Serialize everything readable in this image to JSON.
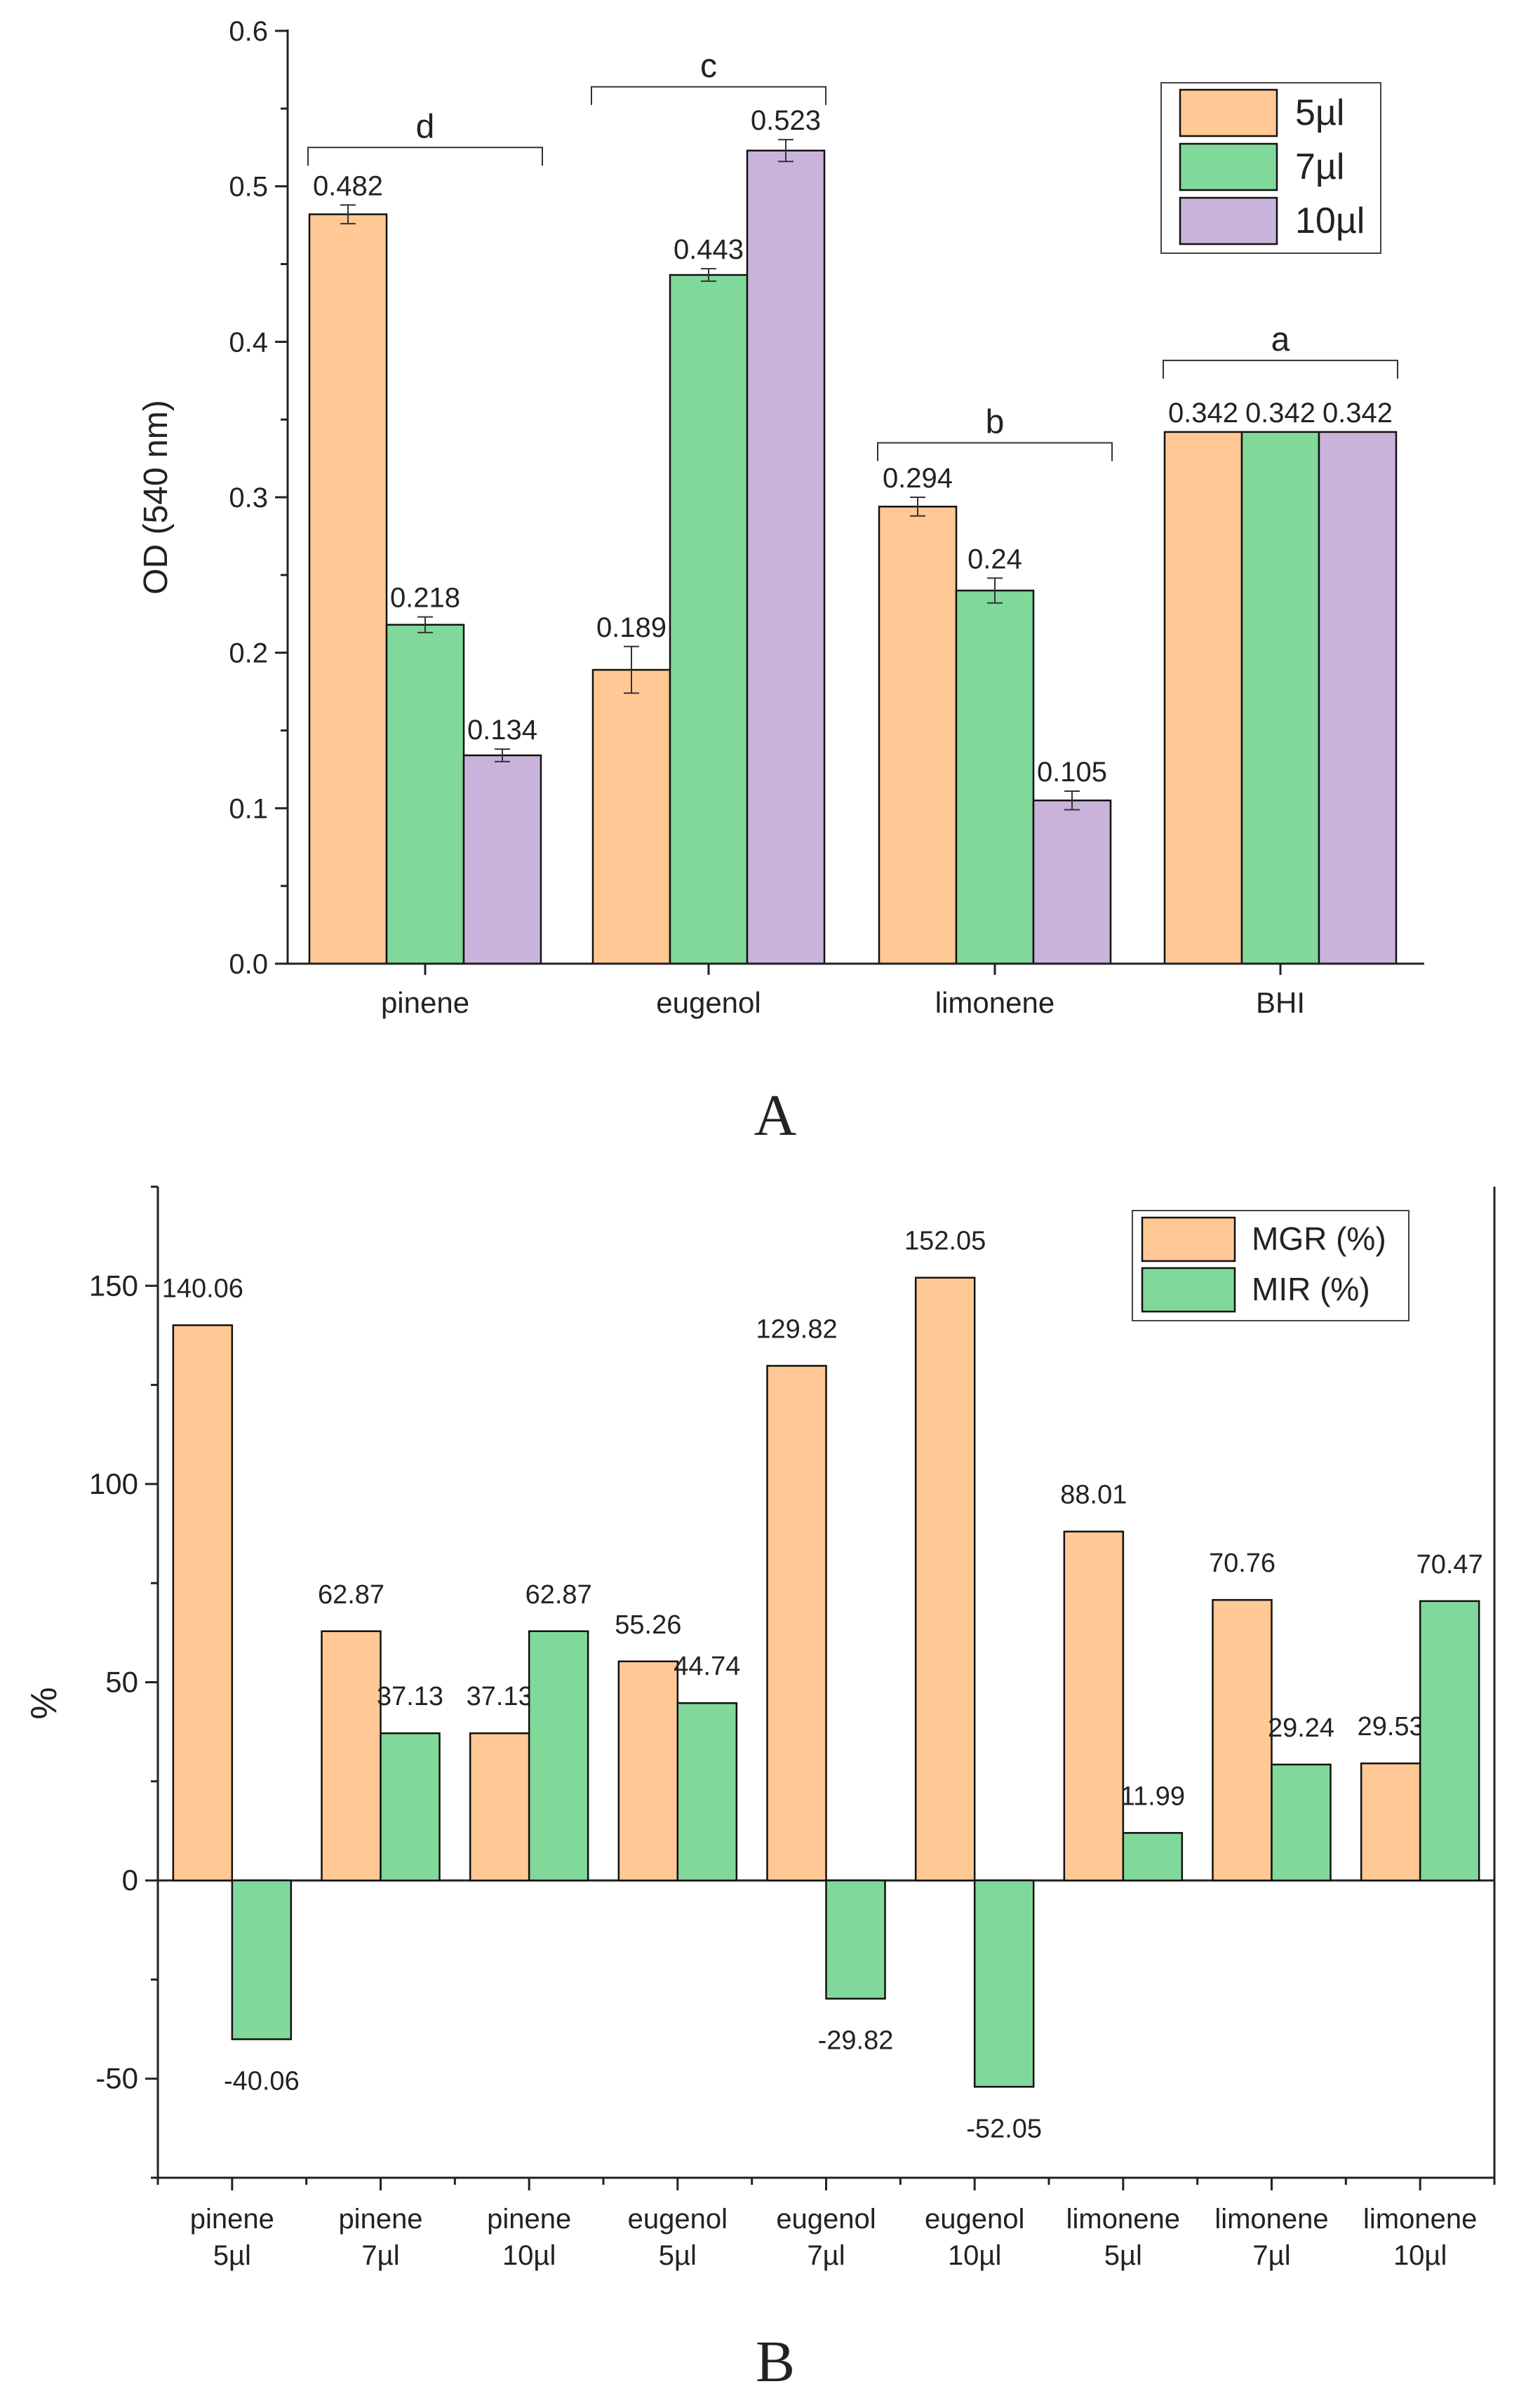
{
  "colors": {
    "orange": "#FFC895",
    "green": "#80D99A",
    "purple": "#C9B3DA",
    "axis": "#222222",
    "edge": "#111111"
  },
  "chart_data": [
    {
      "panel": "A",
      "type": "bar",
      "ylabel": "OD (540 nm)",
      "xlabel": "",
      "ylim": [
        0.0,
        0.6
      ],
      "yticks": [
        0.0,
        0.1,
        0.2,
        0.3,
        0.4,
        0.5,
        0.6
      ],
      "ytick_labels": [
        "0.0",
        "0.1",
        "0.2",
        "0.3",
        "0.4",
        "0.5",
        "0.6"
      ],
      "categories": [
        "pinene",
        "eugenol",
        "limonene",
        "BHI"
      ],
      "series": [
        {
          "name": "5µl",
          "color_key": "orange",
          "values": [
            0.482,
            0.189,
            0.294,
            0.342
          ],
          "errors": [
            0.006,
            0.015,
            0.006,
            0
          ],
          "labels": [
            "0.482",
            "0.189",
            "0.294",
            "0.342"
          ]
        },
        {
          "name": "7µl",
          "color_key": "green",
          "values": [
            0.218,
            0.443,
            0.24,
            0.342
          ],
          "errors": [
            0.005,
            0.004,
            0.008,
            0
          ],
          "labels": [
            "0.218",
            "0.443",
            "0.24",
            "0.342"
          ]
        },
        {
          "name": "10µl",
          "color_key": "purple",
          "values": [
            0.134,
            0.523,
            0.105,
            0.342
          ],
          "errors": [
            0.004,
            0.007,
            0.006,
            0
          ],
          "labels": [
            "0.134",
            "0.523",
            "0.105",
            "0.342"
          ]
        }
      ],
      "significance": [
        {
          "category": "pinene",
          "letter": "d",
          "level": 0.525
        },
        {
          "category": "eugenol",
          "letter": "c",
          "level": 0.564
        },
        {
          "category": "limonene",
          "letter": "b",
          "level": 0.335
        },
        {
          "category": "BHI",
          "letter": "a",
          "level": 0.388
        }
      ],
      "legend": {
        "position": "top-right",
        "entries": [
          "5µl",
          "7µl",
          "10µl"
        ]
      },
      "panel_label": "A"
    },
    {
      "panel": "B",
      "type": "bar",
      "ylabel": "%",
      "xlabel": "",
      "ylim": [
        -75,
        175
      ],
      "yticks": [
        -50,
        0,
        50,
        100,
        150
      ],
      "ytick_labels": [
        "-50",
        "0",
        "50",
        "100",
        "150"
      ],
      "categories": [
        [
          "pinene",
          "5µl"
        ],
        [
          "pinene",
          "7µl"
        ],
        [
          "pinene",
          "10µl"
        ],
        [
          "eugenol",
          "5µl"
        ],
        [
          "eugenol",
          "7µl"
        ],
        [
          "eugenol",
          "10µl"
        ],
        [
          "limonene",
          "5µl"
        ],
        [
          "limonene",
          "7µl"
        ],
        [
          "limonene",
          "10µl"
        ]
      ],
      "series": [
        {
          "name": "MGR (%)",
          "color_key": "orange",
          "values": [
            140.06,
            62.87,
            37.13,
            55.26,
            129.82,
            152.05,
            88.01,
            70.76,
            29.53
          ],
          "labels": [
            "140.06",
            "62.87",
            "37.13",
            "55.26",
            "129.82",
            "152.05",
            "88.01",
            "70.76",
            "29.53"
          ]
        },
        {
          "name": "MIR (%)",
          "color_key": "green",
          "values": [
            -40.06,
            37.13,
            62.87,
            44.74,
            -29.82,
            -52.05,
            11.99,
            29.24,
            70.47
          ],
          "labels": [
            "-40.06",
            "37.13",
            "62.87",
            "44.74",
            "-29.82",
            "-52.05",
            "11.99",
            "29.24",
            "70.47"
          ]
        }
      ],
      "legend": {
        "position": "top-right",
        "entries": [
          "MGR (%)",
          "MIR (%)"
        ]
      },
      "panel_label": "B"
    }
  ]
}
